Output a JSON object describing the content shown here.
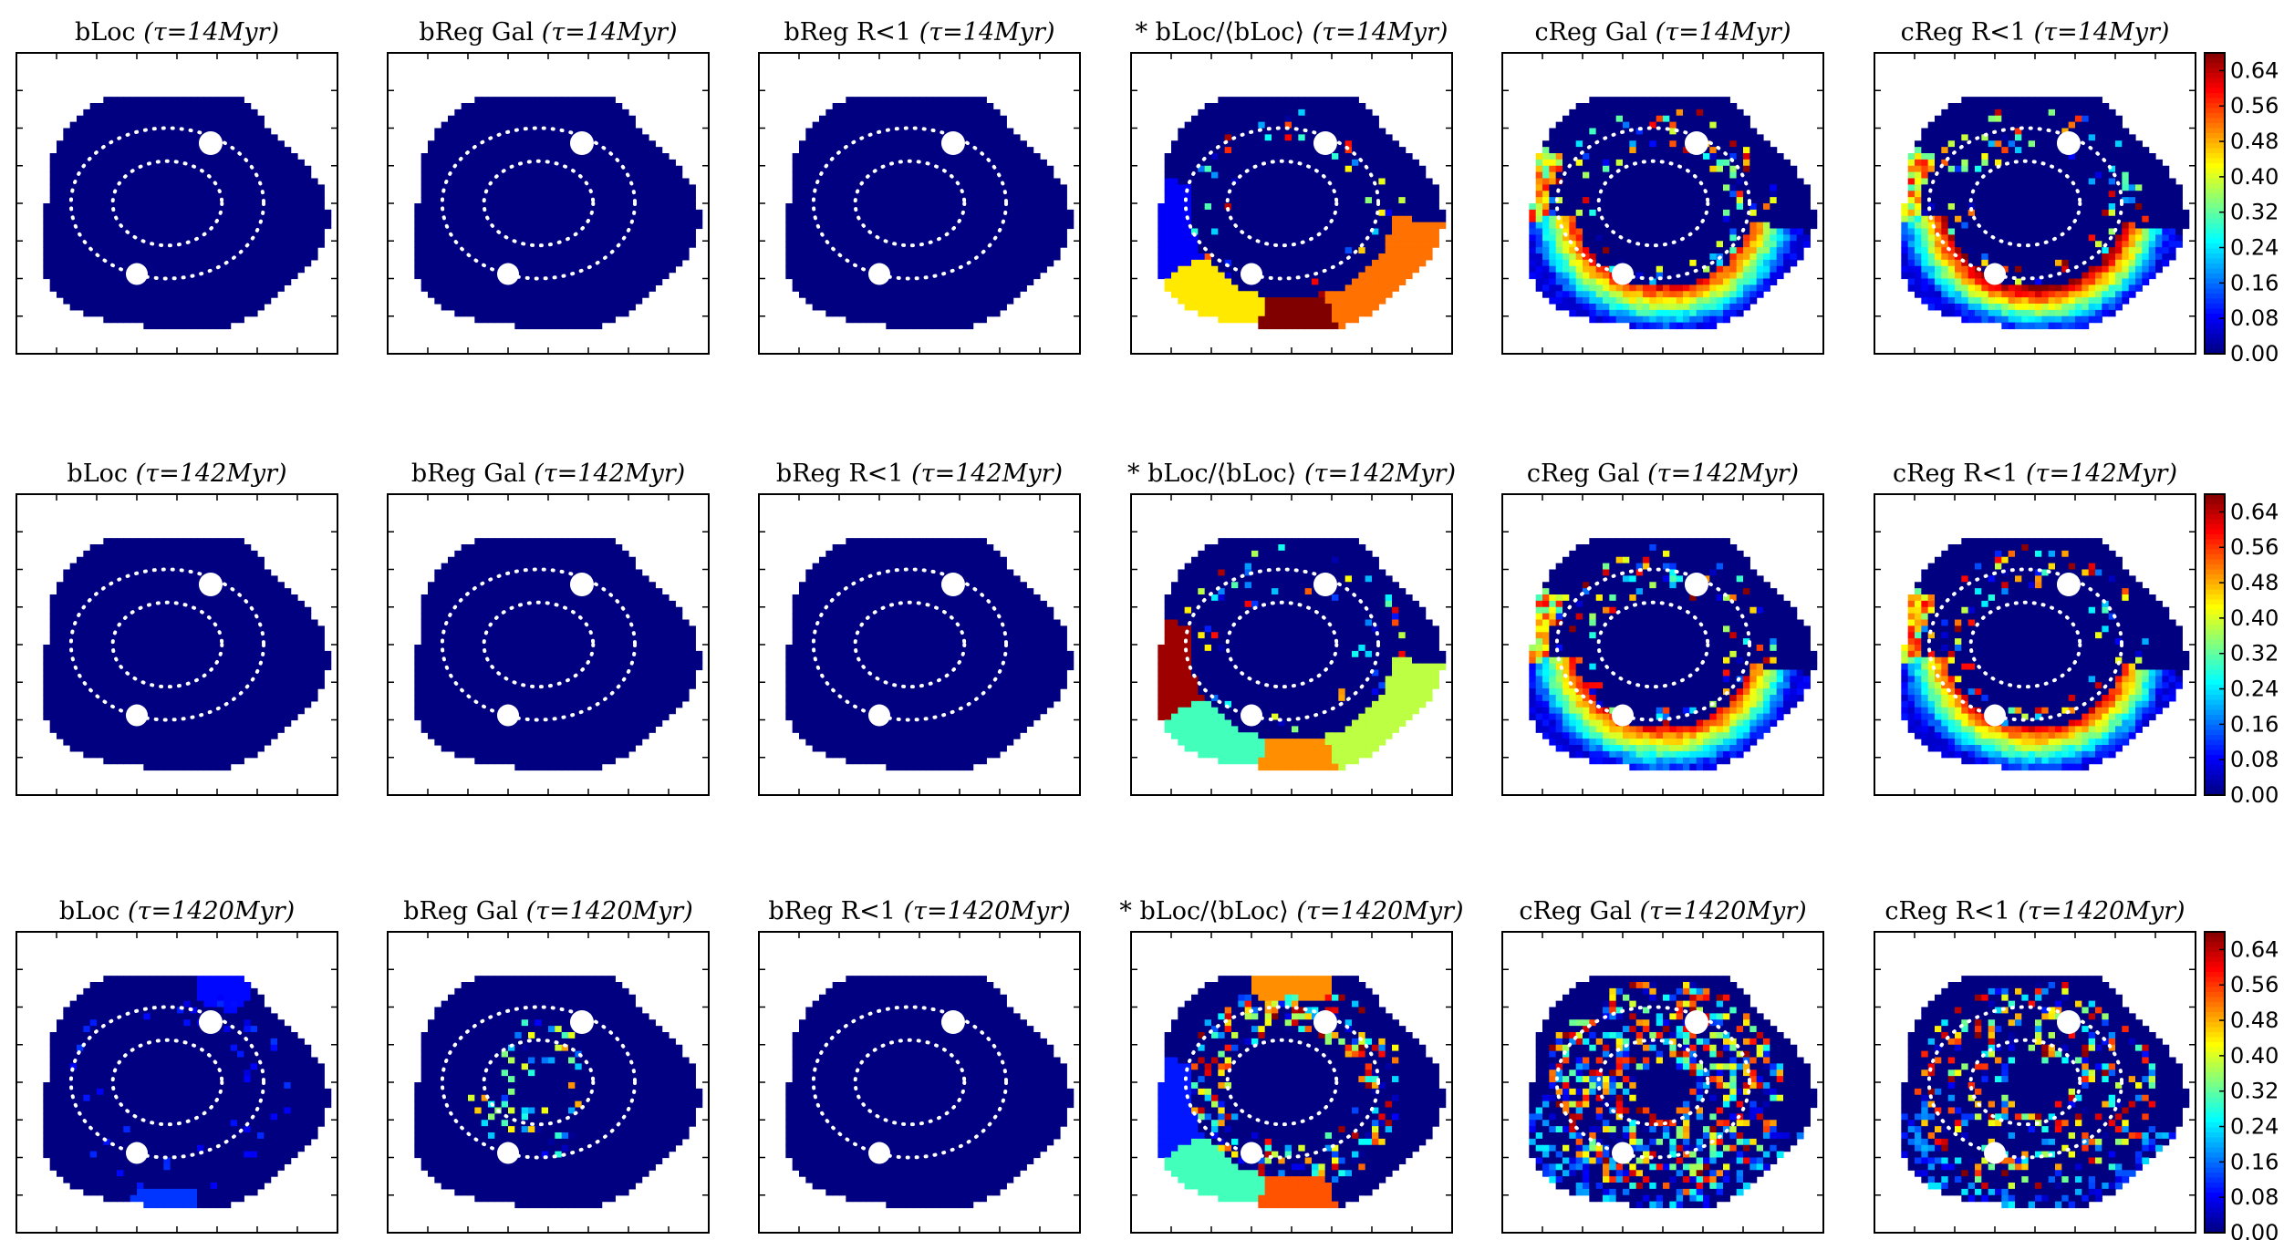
{
  "chart_data": {
    "type": "heatmap",
    "layout": {
      "rows": 3,
      "columns": 6
    },
    "colormap": "jet",
    "colorbar": {
      "min": 0.0,
      "max": 0.68,
      "ticks": [
        "0.00",
        "0.08",
        "0.16",
        "0.24",
        "0.32",
        "0.40",
        "0.48",
        "0.56",
        "0.64"
      ]
    },
    "colors": {
      "background_region": "#00007f",
      "masked_stars": "#ffffff",
      "dotted_ellipses": "#ffffff"
    },
    "panels": [
      {
        "title": "bLoc",
        "tau": "τ=14Myr",
        "row": 0,
        "col": 0,
        "pattern": "empty",
        "colorbar": false
      },
      {
        "title": "bReg Gal",
        "tau": "τ=14Myr",
        "row": 0,
        "col": 1,
        "pattern": "empty",
        "colorbar": false
      },
      {
        "title": "bReg R<1",
        "tau": "τ=14Myr",
        "row": 0,
        "col": 2,
        "pattern": "empty",
        "colorbar": false
      },
      {
        "title": "* bLoc/⟨bLoc⟩",
        "tau": "τ=14Myr",
        "row": 0,
        "col": 3,
        "pattern": "blocks",
        "colorbar": false,
        "blocks": [
          {
            "sector": "left",
            "value": 0.08
          },
          {
            "sector": "bottom-left",
            "value": 0.44
          },
          {
            "sector": "bottom-center",
            "value": 0.68
          },
          {
            "sector": "bottom-right",
            "value": 0.52
          }
        ]
      },
      {
        "title": "cReg Gal",
        "tau": "τ=14Myr",
        "row": 0,
        "col": 4,
        "pattern": "gradient",
        "colorbar": false
      },
      {
        "title": "cReg R<1",
        "tau": "τ=14Myr",
        "row": 0,
        "col": 5,
        "pattern": "gradient-strong",
        "colorbar": true
      },
      {
        "title": "bLoc",
        "tau": "τ=142Myr",
        "row": 1,
        "col": 0,
        "pattern": "empty",
        "colorbar": false
      },
      {
        "title": "bReg Gal",
        "tau": "τ=142Myr",
        "row": 1,
        "col": 1,
        "pattern": "empty",
        "colorbar": false
      },
      {
        "title": "bReg R<1",
        "tau": "τ=142Myr",
        "row": 1,
        "col": 2,
        "pattern": "empty",
        "colorbar": false
      },
      {
        "title": "* bLoc/⟨bLoc⟩",
        "tau": "τ=142Myr",
        "row": 1,
        "col": 3,
        "pattern": "blocks",
        "colorbar": false,
        "blocks": [
          {
            "sector": "left",
            "value": 0.66
          },
          {
            "sector": "bottom-left",
            "value": 0.3
          },
          {
            "sector": "bottom-center",
            "value": 0.5
          },
          {
            "sector": "bottom-right",
            "value": 0.38
          }
        ]
      },
      {
        "title": "cReg Gal",
        "tau": "τ=142Myr",
        "row": 1,
        "col": 4,
        "pattern": "gradient",
        "colorbar": false
      },
      {
        "title": "cReg R<1",
        "tau": "τ=142Myr",
        "row": 1,
        "col": 5,
        "pattern": "gradient",
        "colorbar": true
      },
      {
        "title": "bLoc",
        "tau": "τ=1420Myr",
        "row": 2,
        "col": 0,
        "pattern": "sparse-blue",
        "colorbar": false
      },
      {
        "title": "bReg Gal",
        "tau": "τ=1420Myr",
        "row": 2,
        "col": 1,
        "pattern": "sparse-center",
        "colorbar": false
      },
      {
        "title": "bReg R<1",
        "tau": "τ=1420Myr",
        "row": 2,
        "col": 2,
        "pattern": "empty",
        "colorbar": false
      },
      {
        "title": "* bLoc/⟨bLoc⟩",
        "tau": "τ=1420Myr",
        "row": 2,
        "col": 3,
        "pattern": "blocks-noisy",
        "colorbar": false,
        "blocks": [
          {
            "sector": "top",
            "value": 0.5
          },
          {
            "sector": "bottom-left",
            "value": 0.3
          },
          {
            "sector": "bottom-center",
            "value": 0.54
          },
          {
            "sector": "left",
            "value": 0.1
          }
        ]
      },
      {
        "title": "cReg Gal",
        "tau": "τ=1420Myr",
        "row": 2,
        "col": 4,
        "pattern": "noisy-strong",
        "colorbar": false
      },
      {
        "title": "cReg R<1",
        "tau": "τ=1420Myr",
        "row": 2,
        "col": 5,
        "pattern": "noisy",
        "colorbar": true
      }
    ]
  }
}
